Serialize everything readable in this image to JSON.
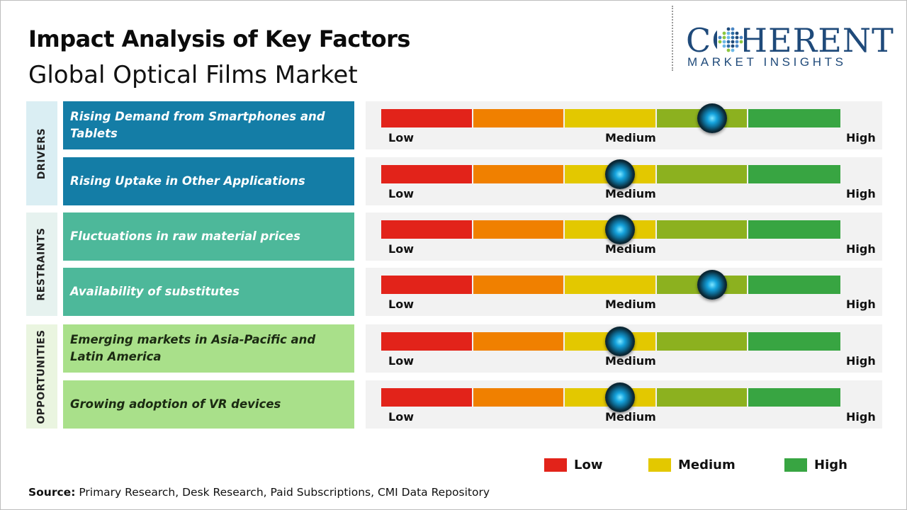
{
  "title": "Impact Analysis of Key Factors",
  "subtitle": "Global Optical Films Market",
  "logo": {
    "main": "COHERENT",
    "sub": "MARKET INSIGHTS"
  },
  "scale": {
    "low": "Low",
    "medium": "Medium",
    "high": "High"
  },
  "colors": {
    "segments": [
      "#e2231a",
      "#f08000",
      "#e3c800",
      "#8cb11f",
      "#38a542"
    ],
    "drivers_box": "#147da6",
    "drivers_side": "#daeef3",
    "restraints_box": "#4db89a",
    "restraints_side": "#e6f2ef",
    "opportunities_box": "#a9e08a",
    "opportunities_side": "#eaf5e0"
  },
  "chart_data": {
    "type": "table",
    "scale_levels": [
      "Low",
      "Medium",
      "High"
    ],
    "categories": [
      {
        "name": "DRIVERS",
        "factors": [
          {
            "label": "Rising Demand from Smartphones and Tablets",
            "impact": 0.72
          },
          {
            "label": "Rising Uptake in Other Applications",
            "impact": 0.52
          }
        ]
      },
      {
        "name": "RESTRAINTS",
        "factors": [
          {
            "label": "Fluctuations in raw material prices",
            "impact": 0.52
          },
          {
            "label": "Availability of substitutes",
            "impact": 0.72
          }
        ]
      },
      {
        "name": "OPPORTUNITIES",
        "factors": [
          {
            "label": "Emerging markets in Asia-Pacific and Latin America",
            "impact": 0.52
          },
          {
            "label": "Growing adoption of VR devices",
            "impact": 0.52
          }
        ]
      }
    ],
    "legend": [
      {
        "label": "Low",
        "color": "#e2231a"
      },
      {
        "label": "Medium",
        "color": "#e3c800"
      },
      {
        "label": "High",
        "color": "#38a542"
      }
    ]
  },
  "source": {
    "label": "Source:",
    "text": " Primary Research, Desk Research, Paid Subscriptions, CMI Data Repository"
  }
}
